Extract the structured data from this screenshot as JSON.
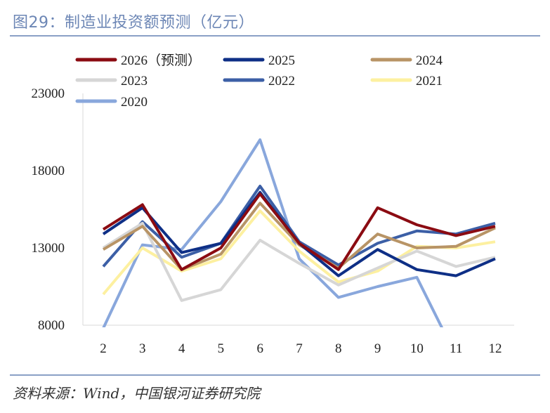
{
  "header": {
    "title": "图29：制造业投资额预测（亿元）"
  },
  "footer": {
    "source": "资料来源：Wind，中国银河证券研究院"
  },
  "chart_data": {
    "type": "line",
    "title": "图29：制造业投资额预测（亿元）",
    "xlabel": "",
    "ylabel": "",
    "ylim": [
      8000,
      23000
    ],
    "yticks": [
      8000,
      13000,
      18000,
      23000
    ],
    "categories": [
      "2",
      "3",
      "4",
      "5",
      "6",
      "7",
      "8",
      "9",
      "10",
      "11",
      "12"
    ],
    "grid": false,
    "legend_position": "top",
    "series": [
      {
        "name": "2026（预测）",
        "color": "#8b0b12",
        "values": [
          14200,
          15800,
          11600,
          13000,
          16500,
          13300,
          11600,
          15600,
          14500,
          13800,
          14400
        ]
      },
      {
        "name": "2025",
        "color": "#0e2f86",
        "values": [
          13900,
          15600,
          12700,
          13300,
          16600,
          13300,
          11200,
          12900,
          11600,
          11200,
          12300
        ]
      },
      {
        "name": "2024",
        "color": "#b89466",
        "values": [
          12900,
          14400,
          11600,
          12600,
          15900,
          13200,
          11700,
          13900,
          13000,
          13100,
          14300
        ]
      },
      {
        "name": "2023",
        "color": "#d6d6d6",
        "values": [
          13000,
          14600,
          9600,
          10300,
          13500,
          12000,
          10600,
          11700,
          12800,
          11800,
          12400
        ]
      },
      {
        "name": "2022",
        "color": "#3c5fa6",
        "values": [
          11800,
          14700,
          12400,
          13300,
          17000,
          13400,
          11900,
          13300,
          14100,
          13900,
          14600
        ]
      },
      {
        "name": "2021",
        "color": "#fdf0a0",
        "values": [
          10000,
          13000,
          11500,
          12300,
          15400,
          12800,
          10800,
          11500,
          13100,
          13000,
          13400
        ]
      },
      {
        "name": "2020",
        "color": "#89a7dc",
        "values": [
          7800,
          13200,
          12900,
          16000,
          20000,
          12300,
          9800,
          10500,
          11100,
          6000,
          null
        ]
      }
    ]
  }
}
